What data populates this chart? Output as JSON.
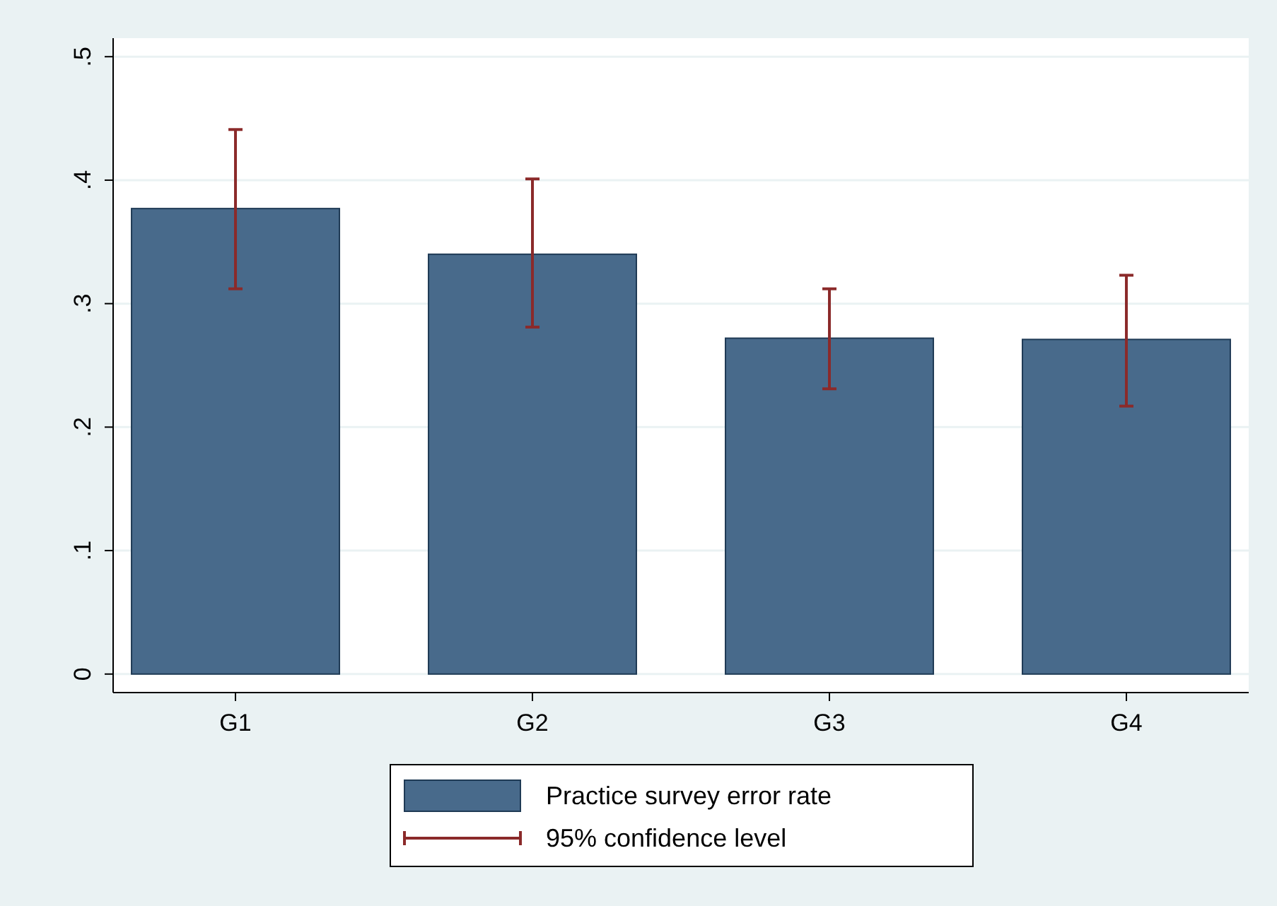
{
  "chart_data": {
    "type": "bar",
    "categories": [
      "G1",
      "G2",
      "G3",
      "G4"
    ],
    "series": [
      {
        "name": "Practice survey error rate",
        "color": "#486a8b",
        "values": [
          0.377,
          0.34,
          0.272,
          0.271
        ],
        "errors": [
          [
            0.312,
            0.441
          ],
          [
            0.281,
            0.401
          ],
          [
            0.231,
            0.312
          ],
          [
            0.217,
            0.323
          ]
        ]
      }
    ],
    "annotations": [
      "95% confidence level"
    ],
    "ylim": [
      -0.015,
      0.515
    ],
    "yticks": [
      {
        "value": 0,
        "label": "0"
      },
      {
        "value": 0.1,
        "label": ".1"
      },
      {
        "value": 0.2,
        "label": ".2"
      },
      {
        "value": 0.3,
        "label": ".3"
      },
      {
        "value": 0.4,
        "label": ".4"
      },
      {
        "value": 0.5,
        "label": ".5"
      }
    ],
    "grid": "y",
    "legend": "bottom"
  }
}
